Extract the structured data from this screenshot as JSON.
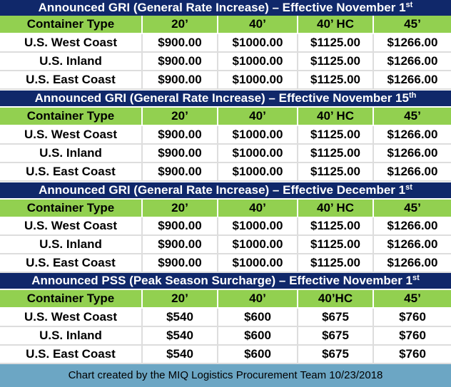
{
  "sections": [
    {
      "title": "Announced GRI (General Rate Increase) – Effective November 1",
      "title_sup": "st",
      "headers": [
        "Container Type",
        "20’",
        "40’",
        "40’ HC",
        "45’"
      ],
      "rows": [
        [
          "U.S. West Coast",
          "$900.00",
          "$1000.00",
          "$1125.00",
          "$1266.00"
        ],
        [
          "U.S. Inland",
          "$900.00",
          "$1000.00",
          "$1125.00",
          "$1266.00"
        ],
        [
          "U.S. East Coast",
          "$900.00",
          "$1000.00",
          "$1125.00",
          "$1266.00"
        ]
      ]
    },
    {
      "title": "Announced GRI (General Rate Increase) – Effective November 15",
      "title_sup": "th",
      "headers": [
        "Container Type",
        "20’",
        "40’",
        "40’ HC",
        "45’"
      ],
      "rows": [
        [
          "U.S. West Coast",
          "$900.00",
          "$1000.00",
          "$1125.00",
          "$1266.00"
        ],
        [
          "U.S. Inland",
          "$900.00",
          "$1000.00",
          "$1125.00",
          "$1266.00"
        ],
        [
          "U.S. East Coast",
          "$900.00",
          "$1000.00",
          "$1125.00",
          "$1266.00"
        ]
      ]
    },
    {
      "title": "Announced GRI (General Rate Increase) – Effective December 1",
      "title_sup": "st",
      "headers": [
        "Container Type",
        "20’",
        "40’",
        "40’ HC",
        "45’"
      ],
      "rows": [
        [
          "U.S. West Coast",
          "$900.00",
          "$1000.00",
          "$1125.00",
          "$1266.00"
        ],
        [
          "U.S. Inland",
          "$900.00",
          "$1000.00",
          "$1125.00",
          "$1266.00"
        ],
        [
          "U.S. East Coast",
          "$900.00",
          "$1000.00",
          "$1125.00",
          "$1266.00"
        ]
      ]
    },
    {
      "title": "Announced PSS (Peak Season Surcharge) –  Effective November 1",
      "title_sup": "st",
      "headers": [
        "Container Type",
        "20’",
        "40’",
        "40’HC",
        "45’"
      ],
      "rows": [
        [
          "U.S. West Coast",
          "$540",
          "$600",
          "$675",
          "$760"
        ],
        [
          "U.S. Inland",
          "$540",
          "$600",
          "$675",
          "$760"
        ],
        [
          "U.S. East Coast",
          "$540",
          "$600",
          "$675",
          "$760"
        ]
      ]
    }
  ],
  "footer": "Chart created by the MIQ Logistics Procurement Team 10/23/2018",
  "colors": {
    "title_bar": "#10286a",
    "header_row": "#92d050",
    "footer_bar": "#6ca6c4"
  }
}
